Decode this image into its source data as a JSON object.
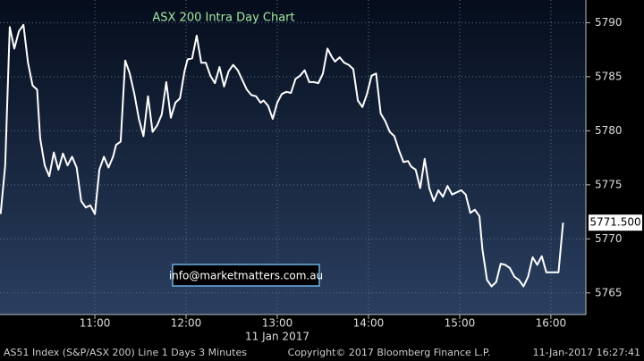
{
  "chart_data": {
    "type": "line",
    "title": "ASX 200 Intra Day Chart",
    "watermark": "info@marketmatters.com.au",
    "date_label": "11 Jan 2017",
    "footer": [
      "AS51 Index (S&P/ASX 200) Line 1 Days 3 Minutes",
      "Copyright© 2017 Bloomberg Finance L.P.",
      "11-Jan-2017 16:27:41"
    ],
    "color": "#ffffff",
    "grid": true,
    "xlim": [
      597.6,
      983
    ],
    "ylim": [
      5763,
      5792.1
    ],
    "xticks": [
      {
        "value": 660,
        "label": "11:00"
      },
      {
        "value": 720,
        "label": "12:00"
      },
      {
        "value": 780,
        "label": "13:00"
      },
      {
        "value": 840,
        "label": "14:00"
      },
      {
        "value": 900,
        "label": "15:00"
      },
      {
        "value": 960,
        "label": "16:00"
      }
    ],
    "yticks": [
      5765,
      5770,
      5775,
      5780,
      5785,
      5790
    ],
    "last_price": {
      "value": 5771.5,
      "label": "5771.500"
    },
    "x": [
      598,
      601,
      604,
      607,
      610,
      613,
      616,
      619,
      622,
      624,
      627,
      630,
      633,
      636,
      639,
      642,
      645,
      648,
      651,
      654,
      657,
      660,
      663,
      666,
      669,
      672,
      674,
      677,
      680,
      683,
      686,
      689,
      692,
      695,
      698,
      701,
      704,
      707,
      710,
      713,
      716,
      719,
      721,
      724,
      727,
      730,
      733,
      736,
      739,
      742,
      745,
      748,
      751,
      754,
      757,
      760,
      763,
      766,
      769,
      771,
      774,
      777,
      780,
      783,
      786,
      789,
      792,
      795,
      798,
      801,
      804,
      807,
      810,
      813,
      816,
      818,
      821,
      824,
      827,
      830,
      833,
      836,
      839,
      842,
      845,
      848,
      851,
      854,
      857,
      860,
      863,
      866,
      868,
      871,
      874,
      877,
      880,
      883,
      886,
      889,
      892,
      895,
      898,
      901,
      904,
      907,
      910,
      913,
      915,
      918,
      921,
      924,
      927,
      930,
      933,
      936,
      939,
      942,
      945,
      948,
      951,
      954,
      957,
      960,
      962,
      965,
      968
    ],
    "values": [
      5772.3,
      5776.8,
      5789.6,
      5787.6,
      5789.2,
      5789.8,
      5786.3,
      5784.2,
      5783.8,
      5779.3,
      5776.8,
      5775.8,
      5778.0,
      5776.4,
      5777.9,
      5776.8,
      5777.6,
      5776.6,
      5773.5,
      5772.9,
      5773.1,
      5772.3,
      5776.4,
      5777.6,
      5776.6,
      5777.6,
      5778.7,
      5779.0,
      5786.5,
      5785.3,
      5783.4,
      5781.1,
      5779.5,
      5783.2,
      5779.9,
      5780.5,
      5781.5,
      5784.5,
      5781.2,
      5782.6,
      5783.0,
      5785.5,
      5786.6,
      5786.7,
      5788.8,
      5786.3,
      5786.3,
      5785.1,
      5784.4,
      5785.9,
      5784.1,
      5785.5,
      5786.1,
      5785.6,
      5784.7,
      5783.8,
      5783.3,
      5783.2,
      5782.6,
      5782.8,
      5782.3,
      5781.1,
      5782.6,
      5783.4,
      5783.6,
      5783.5,
      5784.8,
      5785.1,
      5785.6,
      5784.5,
      5784.5,
      5784.4,
      5785.3,
      5787.6,
      5786.8,
      5786.4,
      5786.8,
      5786.3,
      5786.1,
      5785.7,
      5782.8,
      5782.2,
      5783.4,
      5785.1,
      5785.3,
      5781.6,
      5780.9,
      5779.9,
      5779.5,
      5778.2,
      5777.1,
      5777.2,
      5776.7,
      5776.4,
      5774.7,
      5777.4,
      5774.7,
      5773.5,
      5774.5,
      5773.9,
      5774.9,
      5774.1,
      5774.3,
      5774.5,
      5774.1,
      5772.4,
      5772.7,
      5772.1,
      5769.0,
      5766.2,
      5765.6,
      5766.0,
      5767.7,
      5767.6,
      5767.3,
      5766.5,
      5766.2,
      5765.6,
      5766.5,
      5768.3,
      5767.6,
      5768.4,
      5766.9,
      5766.9,
      5766.9,
      5766.9,
      5771.5
    ]
  }
}
